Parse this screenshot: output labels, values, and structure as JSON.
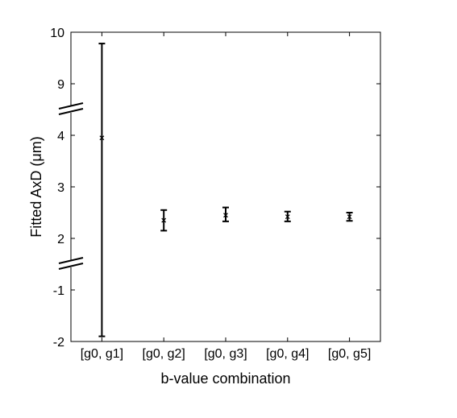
{
  "chart_data": {
    "type": "scatter",
    "title": "",
    "xlabel": "b-value combination",
    "ylabel": "Fitted AxD (μm)",
    "categories": [
      "[g0, g1]",
      "[g0, g2]",
      "[g0, g3]",
      "[g0, g4]",
      "[g0, g5]"
    ],
    "y_tick_labels": [
      "10",
      "9",
      "4",
      "3",
      "2",
      "-1",
      "-2"
    ],
    "y_axis_broken": true,
    "y_axis_segments": [
      {
        "range": [
          -2,
          -1
        ]
      },
      {
        "range": [
          2,
          4
        ]
      },
      {
        "range": [
          9,
          10
        ]
      }
    ],
    "series": [
      {
        "marker": "x",
        "values": [
          3.95,
          2.35,
          2.45,
          2.42,
          2.42
        ],
        "error_low": [
          -1.9,
          2.15,
          2.33,
          2.33,
          2.34
        ],
        "error_high": [
          9.78,
          2.55,
          2.6,
          2.52,
          2.5
        ]
      }
    ],
    "grid": false,
    "legend": "none"
  }
}
